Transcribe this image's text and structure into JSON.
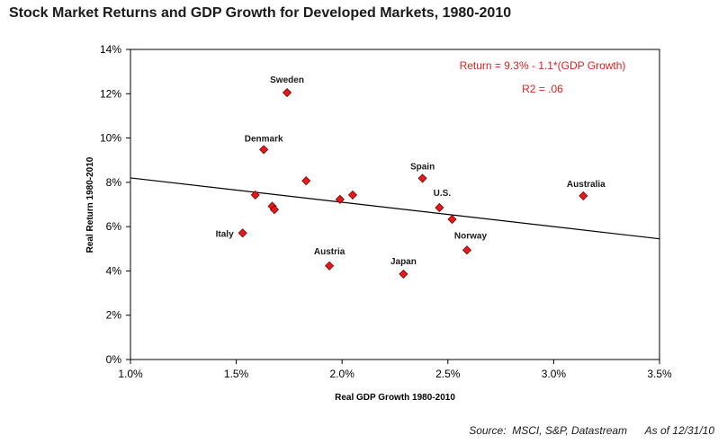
{
  "chart_data": {
    "type": "scatter",
    "title": "Stock Market Returns and GDP Growth for Developed Markets, 1980-2010",
    "xlabel": "Real GDP Growth 1980-2010",
    "ylabel": "Real Return 1980-2010",
    "xlim": [
      0.01,
      0.035
    ],
    "ylim": [
      0.0,
      0.14
    ],
    "x_ticks": [
      {
        "value": 0.01,
        "label": "1.0%"
      },
      {
        "value": 0.015,
        "label": "1.5%"
      },
      {
        "value": 0.02,
        "label": "2.0%"
      },
      {
        "value": 0.025,
        "label": "2.5%"
      },
      {
        "value": 0.03,
        "label": "3.0%"
      },
      {
        "value": 0.035,
        "label": "3.5%"
      }
    ],
    "y_ticks": [
      {
        "value": 0.0,
        "label": "0%"
      },
      {
        "value": 0.02,
        "label": "2%"
      },
      {
        "value": 0.04,
        "label": "4%"
      },
      {
        "value": 0.06,
        "label": "6%"
      },
      {
        "value": 0.08,
        "label": "8%"
      },
      {
        "value": 0.1,
        "label": "10%"
      },
      {
        "value": 0.12,
        "label": "12%"
      },
      {
        "value": 0.14,
        "label": "14%"
      }
    ],
    "grid": false,
    "marker": {
      "shape": "diamond",
      "color": "#e31a1c",
      "edge": "#7a0000"
    },
    "points": [
      {
        "label": "Sweden",
        "x": 0.0174,
        "y": 0.1205
      },
      {
        "label": "Denmark",
        "x": 0.0163,
        "y": 0.0948
      },
      {
        "label": "",
        "x": 0.0183,
        "y": 0.0807
      },
      {
        "label": "",
        "x": 0.0159,
        "y": 0.0743
      },
      {
        "label": "",
        "x": 0.0167,
        "y": 0.0692
      },
      {
        "label": "",
        "x": 0.0168,
        "y": 0.0677
      },
      {
        "label": "",
        "x": 0.0199,
        "y": 0.0723
      },
      {
        "label": "",
        "x": 0.0205,
        "y": 0.0743
      },
      {
        "label": "Italy",
        "x": 0.0153,
        "y": 0.0571
      },
      {
        "label": "Austria",
        "x": 0.0194,
        "y": 0.0423
      },
      {
        "label": "Spain",
        "x": 0.0238,
        "y": 0.0818
      },
      {
        "label": "U.S.",
        "x": 0.0246,
        "y": 0.0686
      },
      {
        "label": "",
        "x": 0.0252,
        "y": 0.0633
      },
      {
        "label": "Norway",
        "x": 0.0259,
        "y": 0.0494
      },
      {
        "label": "Japan",
        "x": 0.0229,
        "y": 0.0386
      },
      {
        "label": "Australia",
        "x": 0.0314,
        "y": 0.0739
      }
    ],
    "trendline": {
      "intercept": 0.093,
      "slope": -1.1,
      "color": "#000000"
    },
    "annotations": [
      "Return = 9.3% - 1.1*(GDP Growth)",
      "R2 = .06"
    ],
    "annotation_color": "#e02020"
  },
  "footer": {
    "source": "Source:  MSCI, S&P, Datastream",
    "as_of": "As of 12/31/10"
  }
}
